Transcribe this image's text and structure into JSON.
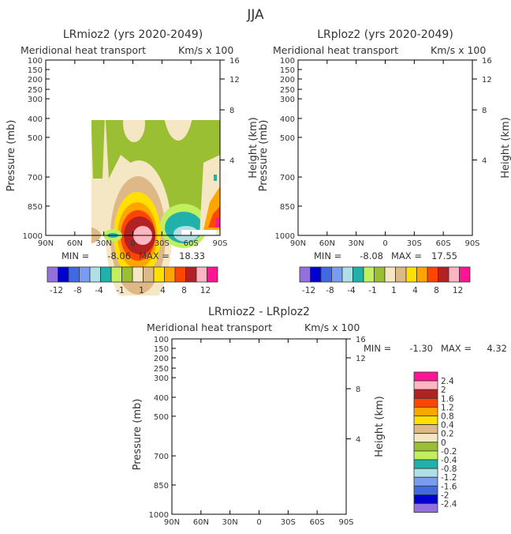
{
  "figure_title": "JJA",
  "chart_data": [
    {
      "type": "heatmap",
      "subtype": "filled-contour",
      "title": "LRmioz2 (yrs 2020-2049)",
      "subtitle": "Meridional heat transport",
      "units_label": "Km/s x 100",
      "ylabel": "Pressure (mb)",
      "ylabel_right": "Height (km)",
      "x_ticks": [
        "90N",
        "60N",
        "30N",
        "0",
        "30S",
        "60S",
        "90S"
      ],
      "y_ticks": [
        "100",
        "150",
        "200",
        "250",
        "300",
        "400",
        "500",
        "700",
        "850",
        "1000"
      ],
      "y_right_ticks": [
        "16",
        "12",
        "8",
        "4"
      ],
      "min_label": "MIN =",
      "min": "-8.06",
      "max_label": "MAX =",
      "max": "18.33",
      "colorbar": {
        "orientation": "horizontal",
        "levels": [
          -12,
          -10,
          -8,
          -6,
          -4,
          -2,
          -1,
          0,
          1,
          2,
          4,
          6,
          8,
          10,
          12
        ],
        "tick_labels": [
          "-12",
          "-8",
          "-4",
          "-1",
          "1",
          "4",
          "8",
          "12"
        ]
      }
    },
    {
      "type": "heatmap",
      "subtype": "filled-contour",
      "title": "LRploz2 (yrs 2020-2049)",
      "subtitle": "Meridional heat transport",
      "units_label": "Km/s x 100",
      "ylabel": "Pressure (mb)",
      "ylabel_right": "Height (km)",
      "x_ticks": [
        "90N",
        "60N",
        "30N",
        "0",
        "30S",
        "60S",
        "90S"
      ],
      "y_ticks": [
        "100",
        "150",
        "200",
        "250",
        "300",
        "400",
        "500",
        "700",
        "850",
        "1000"
      ],
      "y_right_ticks": [
        "16",
        "12",
        "8",
        "4"
      ],
      "min_label": "MIN =",
      "min": "-8.08",
      "max_label": "MAX =",
      "max": "17.55",
      "colorbar": {
        "orientation": "horizontal",
        "levels": [
          -12,
          -10,
          -8,
          -6,
          -4,
          -2,
          -1,
          0,
          1,
          2,
          4,
          6,
          8,
          10,
          12
        ],
        "tick_labels": [
          "-12",
          "-8",
          "-4",
          "-1",
          "1",
          "4",
          "8",
          "12"
        ]
      }
    },
    {
      "type": "heatmap",
      "subtype": "filled-contour",
      "title": "LRmioz2 - LRploz2",
      "subtitle": "Meridional heat transport",
      "units_label": "Km/s x 100",
      "ylabel": "Pressure (mb)",
      "ylabel_right": "Height (km)",
      "x_ticks": [
        "90N",
        "60N",
        "30N",
        "0",
        "30S",
        "60S",
        "90S"
      ],
      "y_ticks": [
        "100",
        "150",
        "200",
        "250",
        "300",
        "400",
        "500",
        "700",
        "850",
        "1000"
      ],
      "y_right_ticks": [
        "16",
        "12",
        "8",
        "4"
      ],
      "min_label": "MIN =",
      "min": "-1.30",
      "max_label": "MAX =",
      "max": "4.32",
      "colorbar": {
        "orientation": "vertical",
        "levels": [
          -2.4,
          -2,
          -1.6,
          -1.2,
          -0.8,
          -0.4,
          -0.2,
          0,
          0.2,
          0.4,
          0.8,
          1.2,
          1.6,
          2,
          2.4
        ],
        "tick_labels": [
          "-2.4",
          "-2",
          "-1.6",
          "-1.2",
          "-0.8",
          "-0.4",
          "-0.2",
          "0",
          "0.2",
          "0.4",
          "0.8",
          "1.2",
          "1.6",
          "2",
          "2.4"
        ]
      }
    }
  ],
  "colors": [
    "#9370DB",
    "#0000CD",
    "#4169E1",
    "#7A9CF0",
    "#B0E0E6",
    "#20B2AA",
    "#C0EF60",
    "#9BBF33",
    "#F5E6C4",
    "#DEB887",
    "#FFE000",
    "#FFA500",
    "#FF4500",
    "#B22222",
    "#FFB6C1",
    "#FF1493"
  ]
}
